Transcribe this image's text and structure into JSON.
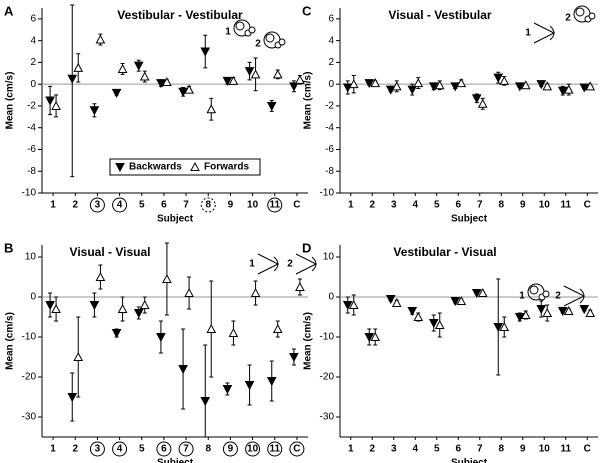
{
  "chart_data": [
    {
      "type": "errorbar",
      "panel": "A",
      "title": "Vestibular - Vestibular",
      "xlabel": "Subject",
      "ylabel": "Mean (cm/s)",
      "categories": [
        "1",
        "2",
        "3",
        "4",
        "5",
        "6",
        "7",
        "8",
        "9",
        "10",
        "11",
        "C"
      ],
      "circled": [
        "none",
        "none",
        "solid",
        "solid",
        "none",
        "none",
        "none",
        "dashed",
        "none",
        "none",
        "solid",
        "none"
      ],
      "ylim": [
        -10,
        7
      ],
      "yticks": [
        -10,
        -8,
        -6,
        -4,
        -2,
        0,
        2,
        4,
        6
      ],
      "legend": true,
      "annotations": [
        {
          "text": "1",
          "icon": "ear"
        },
        {
          "text": "2",
          "icon": "ear"
        }
      ],
      "series": [
        {
          "name": "Backwards",
          "marker": "down-filled",
          "color": "#000",
          "values": [
            -1.5,
            0.5,
            -2.4,
            -0.8,
            1.7,
            0.1,
            -0.7,
            3.0,
            0.3,
            1.2,
            -2.0,
            -0.2
          ],
          "errors": [
            1.3,
            9,
            0.6,
            0.2,
            0.5,
            0.3,
            0.4,
            1.5,
            0.3,
            0.8,
            0.5,
            0.5
          ]
        },
        {
          "name": "Forwards",
          "marker": "up-open",
          "color": "#000",
          "values": [
            -2.0,
            1.5,
            4.1,
            1.4,
            0.7,
            0.2,
            -0.5,
            -2.3,
            0.3,
            0.9,
            0.9,
            0.4
          ],
          "errors": [
            1.0,
            1.3,
            0.5,
            0.5,
            0.5,
            0.2,
            0.3,
            1.0,
            0.3,
            1.5,
            0.4,
            0.4
          ]
        }
      ]
    },
    {
      "type": "errorbar",
      "panel": "C",
      "title": "Visual - Vestibular",
      "xlabel": "Subject",
      "ylabel": "Mean (cm/s)",
      "categories": [
        "1",
        "2",
        "3",
        "4",
        "5",
        "6",
        "7",
        "8",
        "9",
        "10",
        "11",
        "C"
      ],
      "circled": [
        "none",
        "none",
        "none",
        "none",
        "none",
        "none",
        "none",
        "none",
        "none",
        "none",
        "none",
        "none"
      ],
      "ylim": [
        -10,
        7
      ],
      "yticks": [
        -10,
        -8,
        -6,
        -4,
        -2,
        0,
        2,
        4,
        6
      ],
      "legend": false,
      "annotations": [
        {
          "text": "1",
          "icon": "eye"
        },
        {
          "text": "2",
          "icon": "ear"
        }
      ],
      "series": [
        {
          "name": "Backwards",
          "marker": "down-filled",
          "color": "#000",
          "values": [
            -0.3,
            0.1,
            -0.5,
            -0.5,
            -0.2,
            -0.2,
            -1.3,
            0.6,
            -0.2,
            0.0,
            -0.6,
            -0.3
          ],
          "errors": [
            0.6,
            0.2,
            0.2,
            0.5,
            0.3,
            0.2,
            0.4,
            0.5,
            0.1,
            0.2,
            0.4,
            0.1
          ]
        },
        {
          "name": "Forwards",
          "marker": "up-open",
          "color": "#000",
          "values": [
            0.0,
            0.1,
            -0.2,
            0.1,
            -0.1,
            0.1,
            -1.8,
            0.3,
            -0.1,
            -0.2,
            -0.5,
            -0.2
          ],
          "errors": [
            0.8,
            0.2,
            0.5,
            0.5,
            0.4,
            0.3,
            0.5,
            0.4,
            0.1,
            0.2,
            0.5,
            0.1
          ]
        }
      ]
    },
    {
      "type": "errorbar",
      "panel": "B",
      "title": "Visual - Visual",
      "xlabel": "Subject",
      "ylabel": "Mean (cm/s)",
      "categories": [
        "1",
        "2",
        "3",
        "4",
        "5",
        "6",
        "7",
        "8",
        "9",
        "10",
        "11",
        "C"
      ],
      "circled": [
        "none",
        "none",
        "solid",
        "solid",
        "none",
        "solid",
        "solid",
        "none",
        "solid",
        "solid",
        "solid",
        "solid"
      ],
      "ylim": [
        -35,
        13
      ],
      "yticks": [
        -30,
        -20,
        -10,
        0,
        10
      ],
      "legend": false,
      "annotations": [
        {
          "text": "1",
          "icon": "eye"
        },
        {
          "text": "2",
          "icon": "eye"
        }
      ],
      "series": [
        {
          "name": "Backwards",
          "marker": "down-filled",
          "color": "#000",
          "values": [
            -2,
            -25,
            -2,
            -9,
            -4,
            -10,
            -18,
            -26,
            -23,
            -22,
            -21,
            -15
          ],
          "errors": [
            3,
            6,
            3,
            1,
            1.5,
            4,
            10,
            14,
            1.5,
            5,
            5,
            2
          ]
        },
        {
          "name": "Forwards",
          "marker": "up-open",
          "color": "#000",
          "values": [
            -3,
            -15,
            5,
            -3,
            -2,
            4.5,
            1,
            -8,
            -9,
            1,
            -8,
            2.5
          ],
          "errors": [
            3,
            10,
            3,
            3,
            2,
            9,
            4,
            12,
            3,
            3,
            2,
            2
          ]
        }
      ]
    },
    {
      "type": "errorbar",
      "panel": "D",
      "title": "Vestibular - Visual",
      "xlabel": "Subject",
      "ylabel": "Mean (cm/s)",
      "categories": [
        "1",
        "2",
        "3",
        "4",
        "5",
        "6",
        "7",
        "8",
        "9",
        "10",
        "11",
        "C"
      ],
      "circled": [
        "none",
        "none",
        "none",
        "none",
        "none",
        "none",
        "none",
        "none",
        "none",
        "none",
        "none",
        "none"
      ],
      "ylim": [
        -35,
        13
      ],
      "yticks": [
        -30,
        -20,
        -10,
        0,
        10
      ],
      "legend": false,
      "annotations": [
        {
          "text": "1",
          "icon": "ear"
        },
        {
          "text": "2",
          "icon": "eye"
        }
      ],
      "series": [
        {
          "name": "Backwards",
          "marker": "down-filled",
          "color": "#000",
          "values": [
            -2,
            -10,
            -0.5,
            -3.5,
            -6.5,
            -1,
            1,
            -7.5,
            -5,
            -3,
            -3.5,
            -3
          ],
          "errors": [
            2,
            2,
            0.5,
            0.8,
            2,
            0.5,
            0.3,
            12,
            1,
            2,
            0.5,
            0.5
          ]
        },
        {
          "name": "Forwards",
          "marker": "up-open",
          "color": "#000",
          "values": [
            -2,
            -10,
            -1.5,
            -5,
            -7,
            -1,
            1,
            -7.5,
            -4.5,
            -4,
            -3.5,
            -4
          ],
          "errors": [
            2.5,
            2,
            0.7,
            1,
            3,
            0.5,
            0.3,
            2.5,
            1,
            2,
            0.5,
            0.7
          ]
        }
      ]
    }
  ]
}
